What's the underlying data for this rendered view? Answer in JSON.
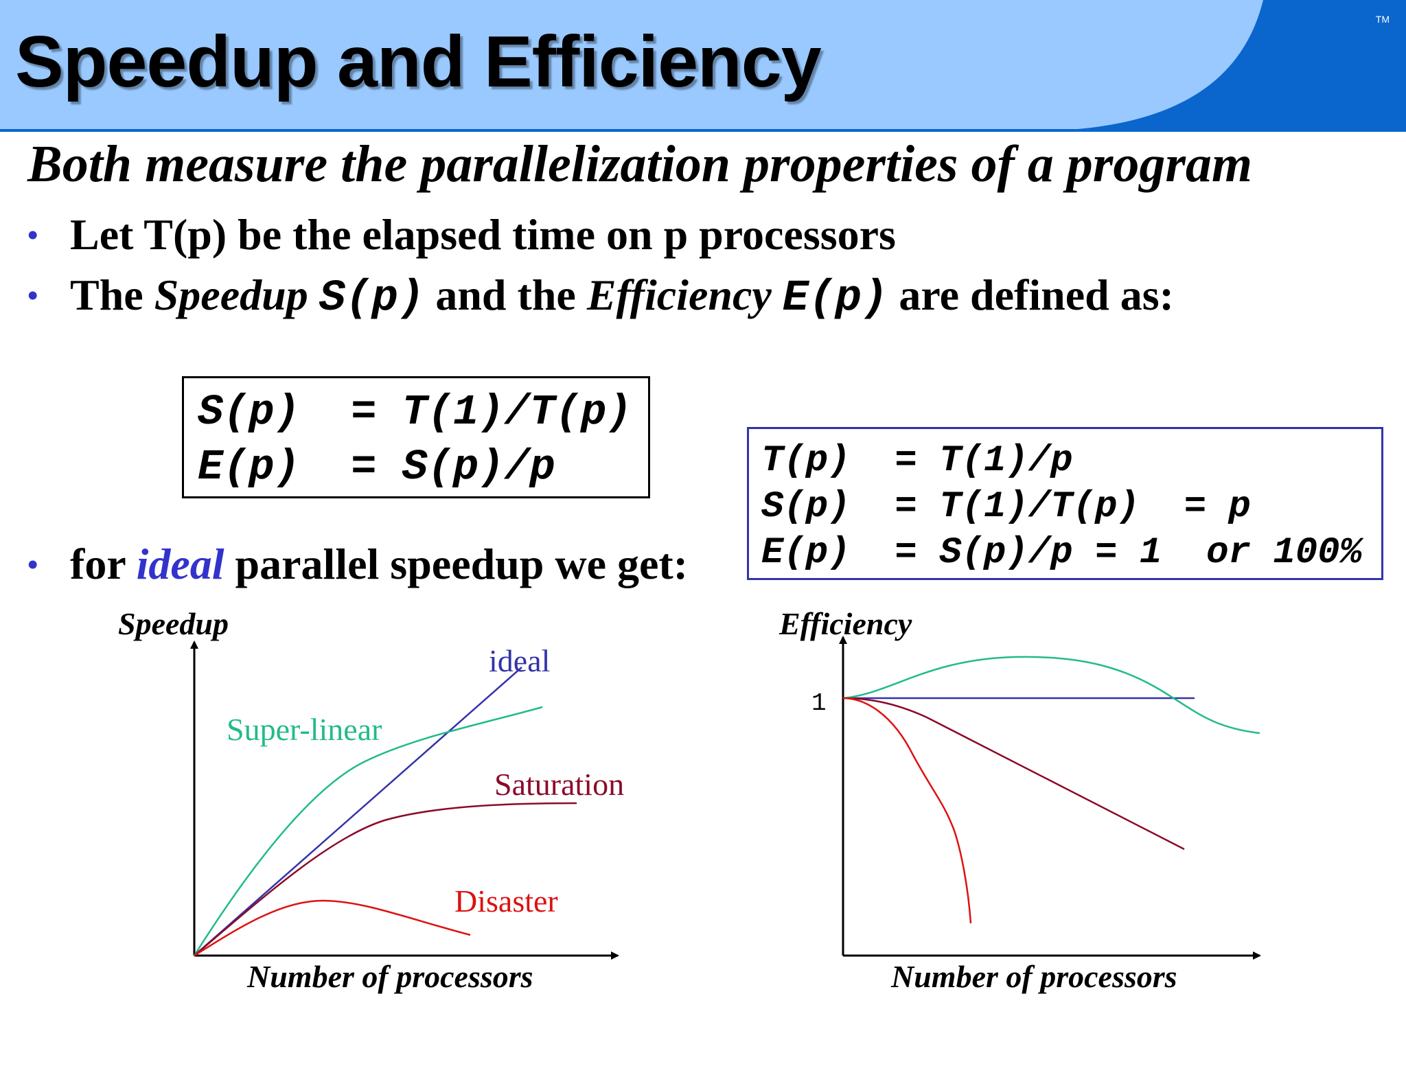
{
  "header": {
    "title": "Speedup and Efficiency",
    "trademark": "TM",
    "colors": {
      "band": "#99c9ff",
      "accent": "#0a66cc"
    }
  },
  "subtitle": "Both measure the parallelization properties of a program",
  "bullets": {
    "b1": "Let T(p) be the elapsed time on p processors",
    "b2": {
      "p1": "The ",
      "speedup": "Speedup",
      "s_code": "S(p)",
      "p2": " and the ",
      "efficiency": "Efficiency",
      "e_code": "E(p)",
      "p3": " are defined as:"
    },
    "b3": {
      "p1": "for ",
      "ideal": "ideal",
      "p2": " parallel speedup we get:"
    }
  },
  "definitions": [
    "S(p)  = T(1)/T(p)",
    "E(p)  = S(p)/p"
  ],
  "ideal_formulas": [
    "T(p)  = T(1)/p",
    "S(p)  = T(1)/T(p)  = p",
    "E(p)  = S(p)/p = 1  or 100%"
  ],
  "chart_data": [
    {
      "type": "line",
      "ylabel": "Speedup",
      "xlabel": "Number of processors",
      "series": [
        {
          "name": "ideal",
          "color": "#3333aa"
        },
        {
          "name": "Super-linear",
          "color": "#22bb88"
        },
        {
          "name": "Saturation",
          "color": "#8b0a2a"
        },
        {
          "name": "Disaster",
          "color": "#dd1111"
        }
      ]
    },
    {
      "type": "line",
      "ylabel": "Efficiency",
      "xlabel": "Number of processors",
      "y_tick": "1",
      "series_colors": [
        "#3333aa",
        "#22bb88",
        "#8b0a2a",
        "#dd1111"
      ]
    }
  ]
}
